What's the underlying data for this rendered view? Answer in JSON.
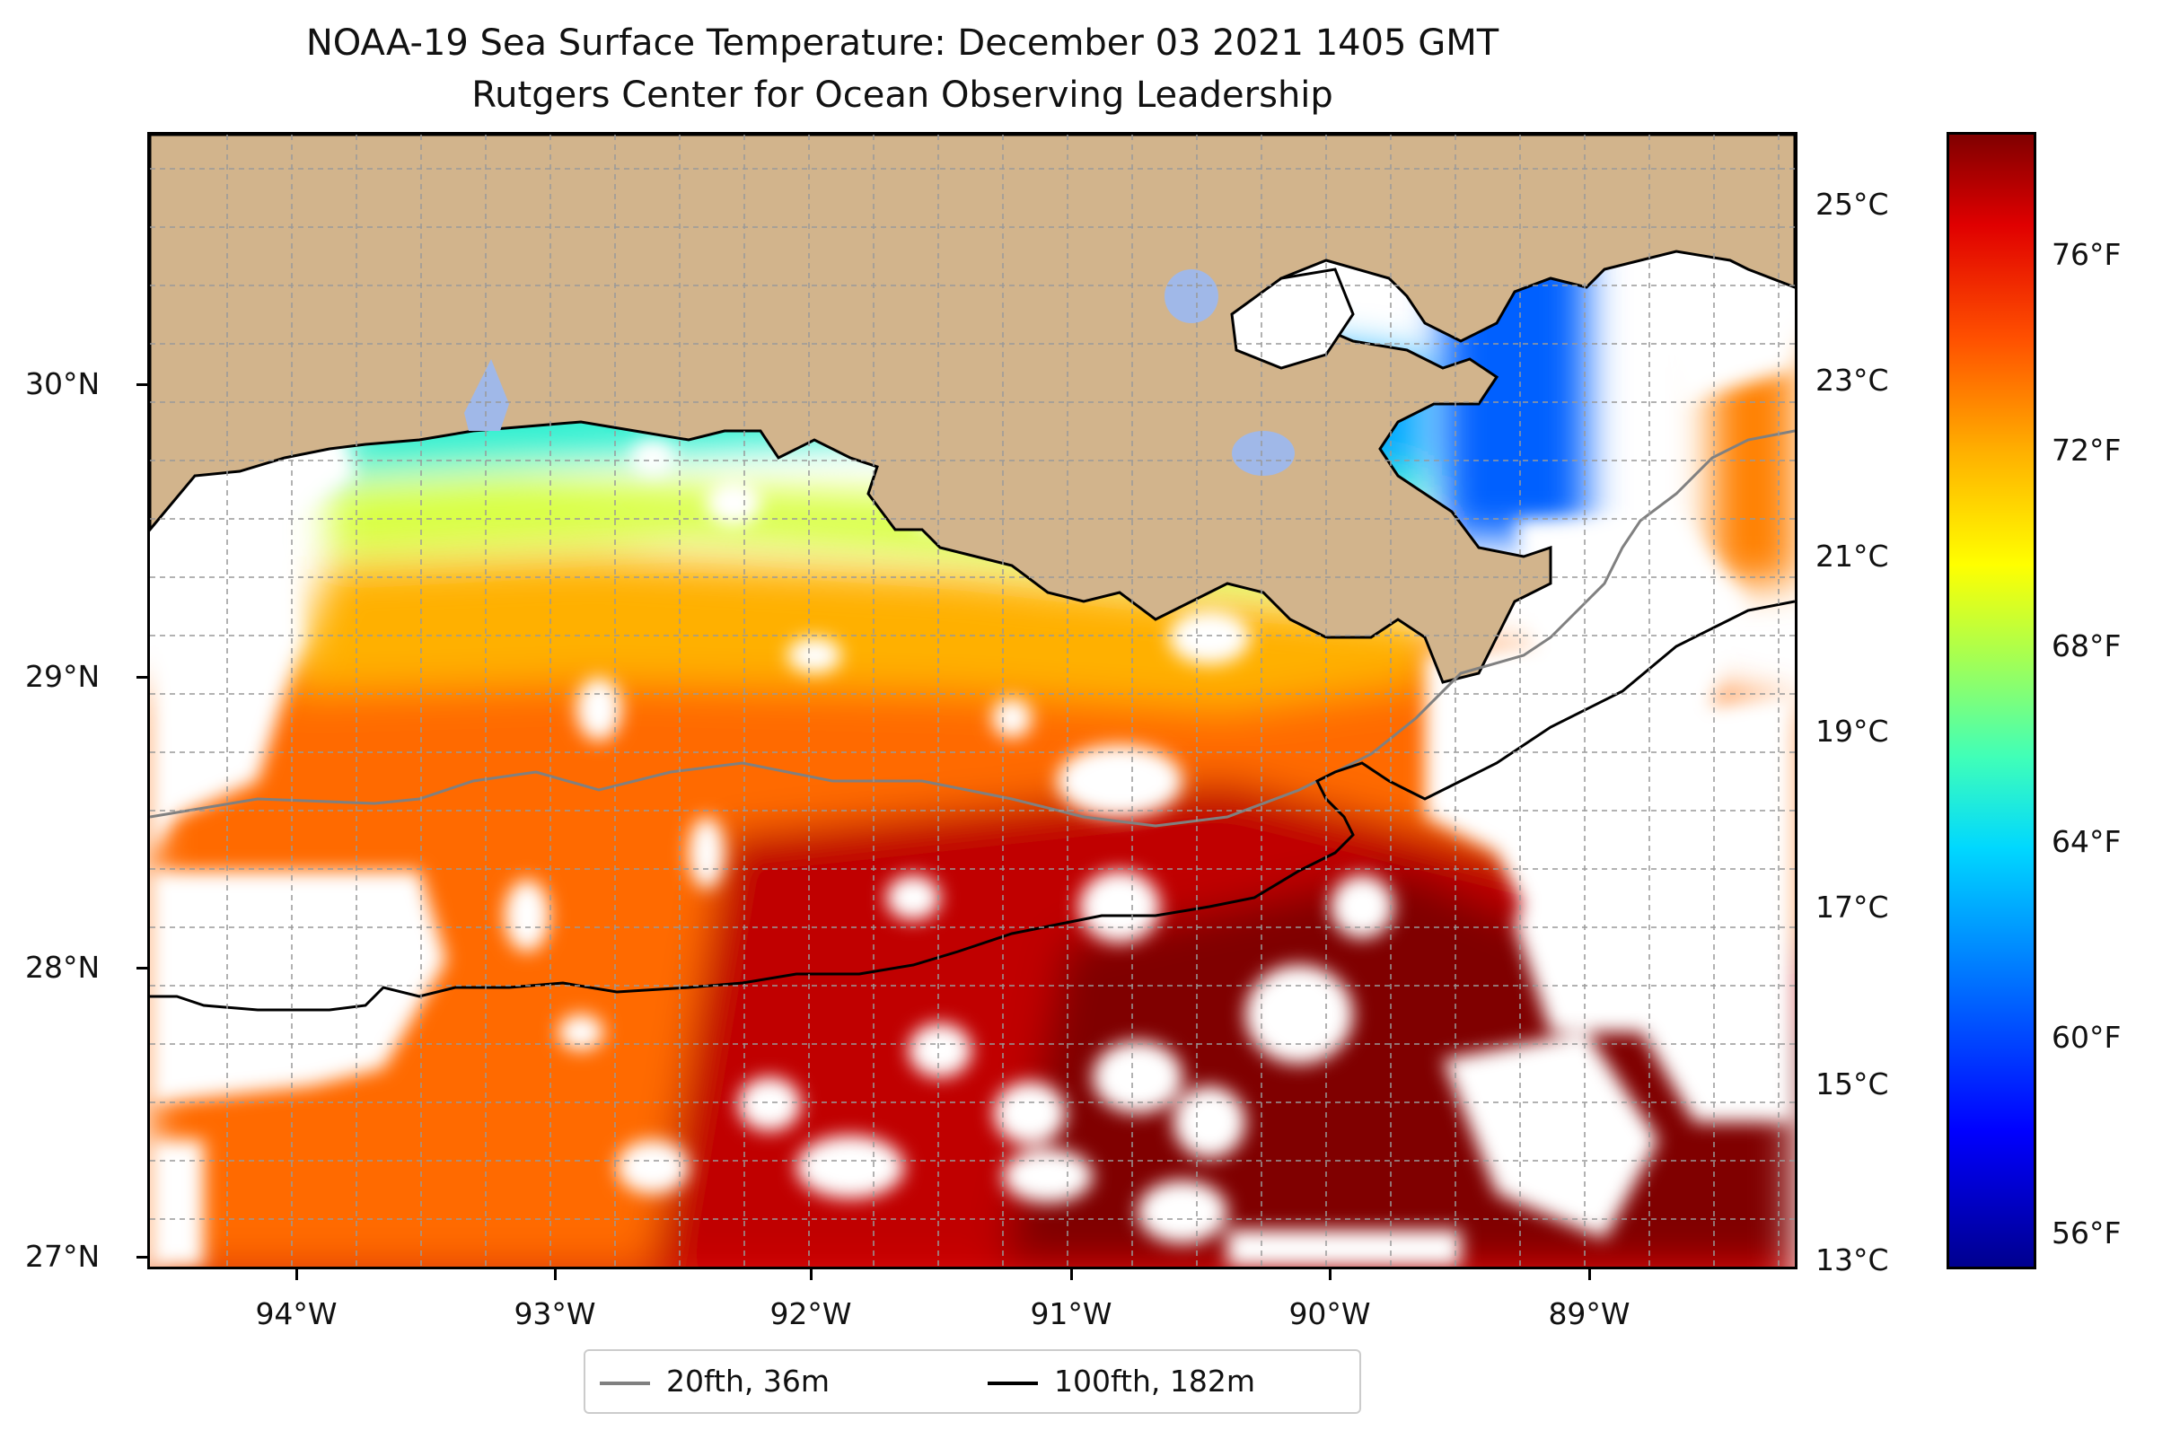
{
  "title": "NOAA-19 Sea Surface Temperature: December 03 2021 1405 GMT",
  "subtitle": "Rutgers Center for Ocean Observing Leadership",
  "axes": {
    "lat_labels": [
      "30°N",
      "29°N",
      "28°N",
      "27°N"
    ],
    "lon_labels": [
      "94°W",
      "93°W",
      "92°W",
      "91°W",
      "90°W",
      "89°W"
    ],
    "lat_range": [
      26.93,
      30.83
    ],
    "lon_range": [
      -94.55,
      -88.2
    ]
  },
  "colorbar": {
    "celsius_labels": [
      "25°C",
      "23°C",
      "21°C",
      "19°C",
      "17°C",
      "15°C",
      "13°C"
    ],
    "fahrenheit_labels": [
      "76°F",
      "72°F",
      "68°F",
      "64°F",
      "60°F",
      "56°F"
    ],
    "colormap": "jet"
  },
  "legend": {
    "items": [
      {
        "label": "20fth, 36m",
        "color": "#808080"
      },
      {
        "label": "100fth, 182m",
        "color": "#000000"
      }
    ]
  },
  "colors": {
    "land": "#d2b48c",
    "lakes": "#a0b8e8",
    "no_data": "#ffffff"
  }
}
